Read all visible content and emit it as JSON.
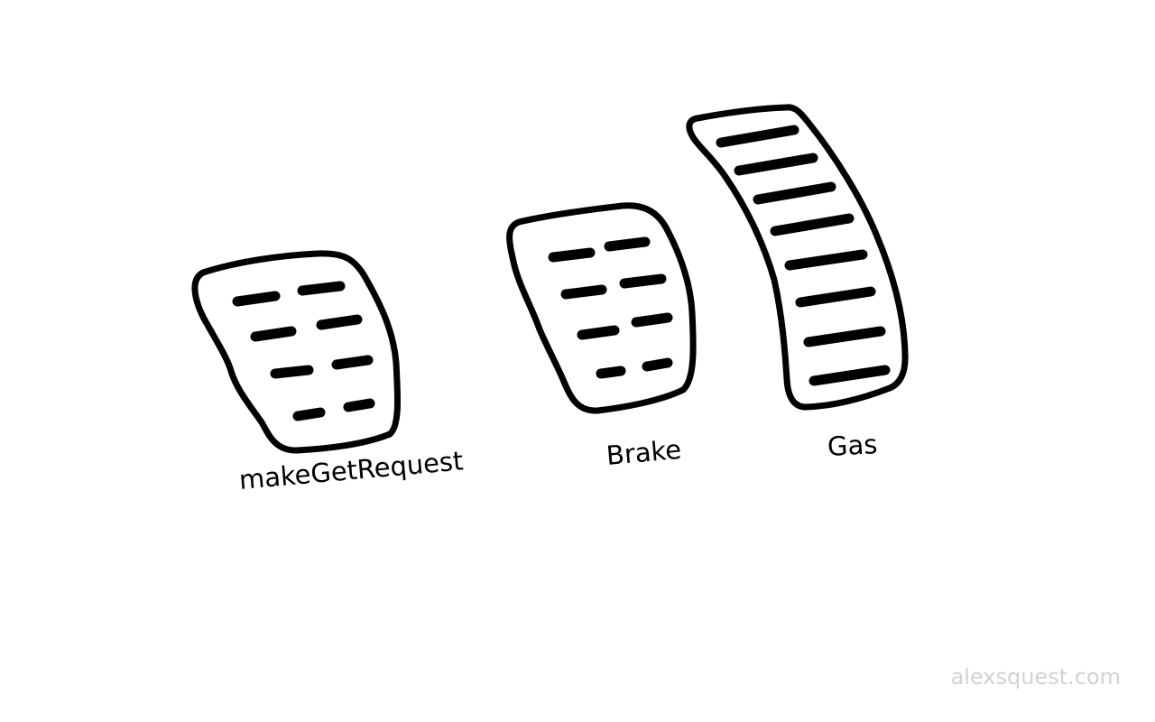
{
  "pedals": [
    {
      "label": "makeGetRequest"
    },
    {
      "label": "Brake"
    },
    {
      "label": "Gas"
    }
  ],
  "watermark": "alexsquest.com",
  "colors": {
    "stroke": "#000000",
    "background": "#ffffff",
    "watermark": "#d2d2d2"
  }
}
